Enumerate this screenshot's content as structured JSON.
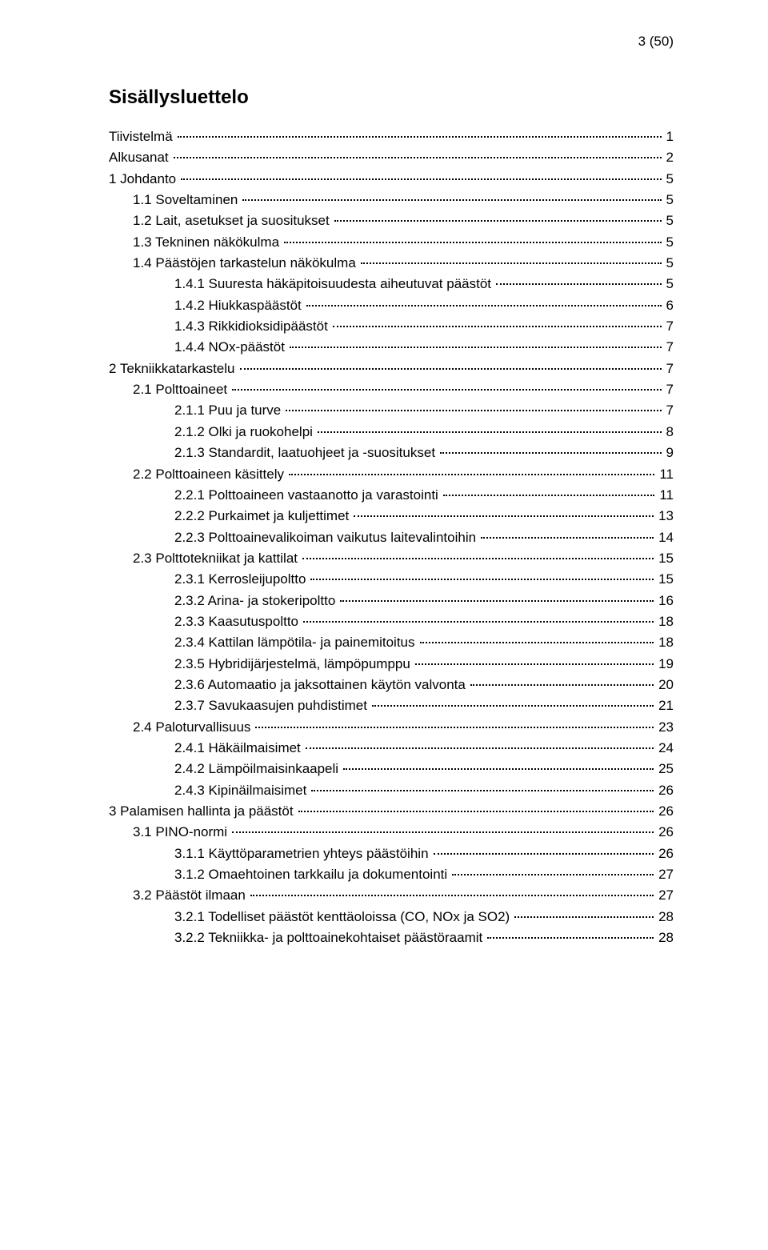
{
  "page_number": "3 (50)",
  "title": "Sisällysluettelo",
  "colors": {
    "text": "#000000",
    "background": "#ffffff",
    "dots": "#000000"
  },
  "typography": {
    "body_fontsize_pt": 12,
    "title_fontsize_pt": 18,
    "title_weight": "bold",
    "family": "Arial"
  },
  "toc": [
    {
      "label": "Tiivistelmä",
      "page": "1",
      "indent": 0
    },
    {
      "label": "Alkusanat",
      "page": "2",
      "indent": 0
    },
    {
      "label": "1  Johdanto",
      "page": "5",
      "indent": 0
    },
    {
      "label": "1.1  Soveltaminen",
      "page": "5",
      "indent": 1
    },
    {
      "label": "1.2  Lait, asetukset ja suositukset",
      "page": "5",
      "indent": 1
    },
    {
      "label": "1.3  Tekninen näkökulma",
      "page": "5",
      "indent": 1
    },
    {
      "label": "1.4  Päästöjen tarkastelun näkökulma",
      "page": "5",
      "indent": 1
    },
    {
      "label": "1.4.1  Suuresta häkäpitoisuudesta aiheutuvat päästöt",
      "page": "5",
      "indent": 2
    },
    {
      "label": "1.4.2  Hiukkaspäästöt",
      "page": "6",
      "indent": 2
    },
    {
      "label": "1.4.3  Rikkidioksidipäästöt",
      "page": "7",
      "indent": 2
    },
    {
      "label": "1.4.4  NOx-päästöt",
      "page": "7",
      "indent": 2
    },
    {
      "label": "2  Tekniikkatarkastelu",
      "page": "7",
      "indent": 0
    },
    {
      "label": "2.1  Polttoaineet",
      "page": "7",
      "indent": 1
    },
    {
      "label": "2.1.1  Puu ja turve",
      "page": "7",
      "indent": 2
    },
    {
      "label": "2.1.2  Olki ja ruokohelpi",
      "page": "8",
      "indent": 2
    },
    {
      "label": "2.1.3  Standardit, laatuohjeet ja -suositukset",
      "page": "9",
      "indent": 2
    },
    {
      "label": "2.2  Polttoaineen käsittely",
      "page": "11",
      "indent": 1
    },
    {
      "label": "2.2.1  Polttoaineen vastaanotto ja varastointi",
      "page": "11",
      "indent": 2
    },
    {
      "label": "2.2.2  Purkaimet ja kuljettimet",
      "page": "13",
      "indent": 2
    },
    {
      "label": "2.2.3  Polttoainevalikoiman vaikutus laitevalintoihin",
      "page": "14",
      "indent": 2
    },
    {
      "label": "2.3  Polttotekniikat ja kattilat",
      "page": "15",
      "indent": 1
    },
    {
      "label": "2.3.1  Kerrosleijupoltto",
      "page": "15",
      "indent": 2
    },
    {
      "label": "2.3.2  Arina- ja stokeripoltto",
      "page": "16",
      "indent": 2
    },
    {
      "label": "2.3.3  Kaasutuspoltto",
      "page": "18",
      "indent": 2
    },
    {
      "label": "2.3.4  Kattilan lämpötila- ja painemitoitus",
      "page": "18",
      "indent": 2
    },
    {
      "label": "2.3.5  Hybridijärjestelmä, lämpöpumppu",
      "page": "19",
      "indent": 2
    },
    {
      "label": "2.3.6  Automaatio ja jaksottainen käytön valvonta",
      "page": "20",
      "indent": 2
    },
    {
      "label": "2.3.7  Savukaasujen puhdistimet",
      "page": "21",
      "indent": 2
    },
    {
      "label": "2.4  Paloturvallisuus",
      "page": "23",
      "indent": 1
    },
    {
      "label": "2.4.1  Häkäilmaisimet",
      "page": "24",
      "indent": 2
    },
    {
      "label": "2.4.2  Lämpöilmaisinkaapeli",
      "page": "25",
      "indent": 2
    },
    {
      "label": "2.4.3  Kipinäilmaisimet",
      "page": "26",
      "indent": 2
    },
    {
      "label": "3  Palamisen hallinta ja päästöt",
      "page": "26",
      "indent": 0
    },
    {
      "label": "3.1  PINO-normi",
      "page": "26",
      "indent": 1
    },
    {
      "label": "3.1.1  Käyttöparametrien yhteys päästöihin",
      "page": "26",
      "indent": 2
    },
    {
      "label": "3.1.2  Omaehtoinen tarkkailu ja dokumentointi",
      "page": "27",
      "indent": 2
    },
    {
      "label": "3.2  Päästöt ilmaan",
      "page": "27",
      "indent": 1
    },
    {
      "label": "3.2.1  Todelliset päästöt kenttäoloissa (CO, NOx ja SO2)",
      "page": "28",
      "indent": 2
    },
    {
      "label": "3.2.2  Tekniikka- ja polttoainekohtaiset päästöraamit",
      "page": "28",
      "indent": 2
    }
  ]
}
